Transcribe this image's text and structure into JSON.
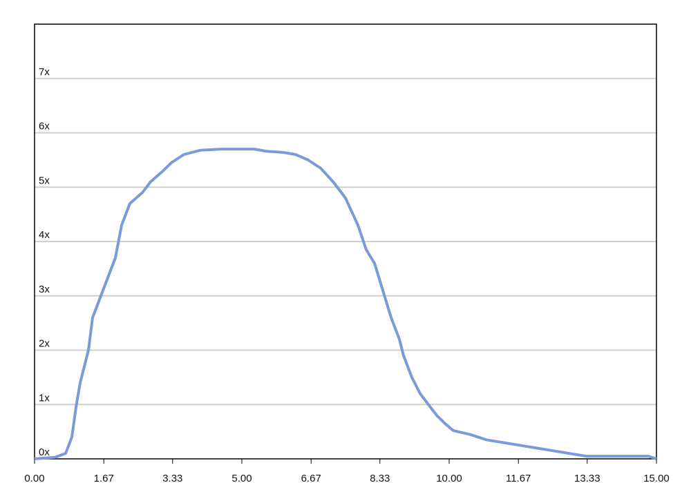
{
  "chart_data": {
    "type": "line",
    "x": [
      0,
      0.5,
      0.75,
      0.9,
      1.0,
      1.1,
      1.3,
      1.4,
      1.6,
      1.8,
      1.95,
      2.1,
      2.3,
      2.6,
      2.8,
      3.1,
      3.3,
      3.6,
      4.0,
      4.5,
      5.0,
      5.3,
      5.6,
      6.0,
      6.3,
      6.6,
      6.9,
      7.2,
      7.5,
      7.8,
      8.0,
      8.2,
      8.4,
      8.6,
      8.8,
      8.9,
      9.1,
      9.3,
      9.5,
      9.7,
      9.9,
      10.1,
      10.5,
      10.9,
      11.3,
      11.7,
      12.1,
      12.5,
      12.9,
      13.3,
      14.0,
      14.5,
      14.8,
      15
    ],
    "series": [
      {
        "color": "#7b9bd6",
        "values": [
          0,
          0.03,
          0.1,
          0.4,
          0.95,
          1.4,
          2.0,
          2.6,
          3.0,
          3.4,
          3.7,
          4.3,
          4.7,
          4.9,
          5.1,
          5.3,
          5.45,
          5.6,
          5.68,
          5.7,
          5.7,
          5.7,
          5.66,
          5.64,
          5.6,
          5.5,
          5.35,
          5.1,
          4.8,
          4.3,
          3.85,
          3.6,
          3.1,
          2.6,
          2.2,
          1.9,
          1.5,
          1.2,
          1.0,
          0.8,
          0.65,
          0.52,
          0.45,
          0.35,
          0.3,
          0.25,
          0.2,
          0.15,
          0.1,
          0.05,
          0.05,
          0.05,
          0.05,
          0
        ]
      }
    ],
    "xlim": [
      0,
      15
    ],
    "xticks": [
      {
        "value": 0,
        "label": "0.00"
      },
      1.67,
      3.33,
      {
        "value": 5,
        "label": "5.00"
      },
      6.67,
      8.33,
      {
        "value": 10,
        "label": "10.00"
      },
      11.67,
      13.33,
      {
        "value": 15,
        "label": "15.00"
      }
    ],
    "ylim": [
      0,
      8
    ],
    "yticks": [
      {
        "value": 0,
        "label": "0x"
      },
      {
        "value": 1,
        "label": "1x"
      },
      {
        "value": 2,
        "label": "2x"
      },
      {
        "value": 3,
        "label": "3x"
      },
      {
        "value": 4,
        "label": "4x"
      },
      {
        "value": 5,
        "label": "5x"
      },
      {
        "value": 6,
        "label": "6x"
      },
      {
        "value": 7,
        "label": "7x"
      }
    ],
    "grid": true
  }
}
